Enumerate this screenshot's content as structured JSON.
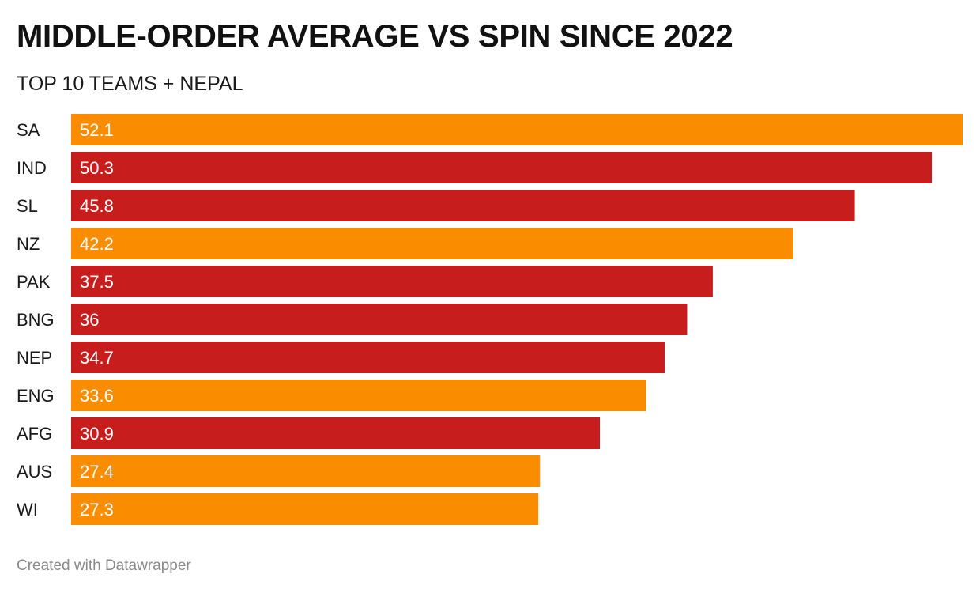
{
  "colors": {
    "highlight": "#c71e1d",
    "default": "#fa8c00",
    "label_text": "#ffffff",
    "category_text": "#1a1a1a"
  },
  "chart_data": {
    "type": "bar",
    "orientation": "horizontal",
    "title": "MIDDLE-ORDER AVERAGE VS SPIN SINCE 2022",
    "subtitle": "TOP 10 TEAMS + NEPAL",
    "categories": [
      "SA",
      "IND",
      "SL",
      "NZ",
      "PAK",
      "BNG",
      "NEP",
      "ENG",
      "AFG",
      "AUS",
      "WI"
    ],
    "values": [
      52.1,
      50.3,
      45.8,
      42.2,
      37.5,
      36,
      34.7,
      33.6,
      30.9,
      27.4,
      27.3
    ],
    "value_labels": [
      "52.1",
      "50.3",
      "45.8",
      "42.2",
      "37.5",
      "36",
      "34.7",
      "33.6",
      "30.9",
      "27.4",
      "27.3"
    ],
    "bar_colors": [
      "default",
      "highlight",
      "highlight",
      "default",
      "highlight",
      "highlight",
      "highlight",
      "default",
      "highlight",
      "default",
      "default"
    ],
    "xlim": [
      0,
      52.1
    ]
  },
  "footer": "Created with Datawrapper"
}
